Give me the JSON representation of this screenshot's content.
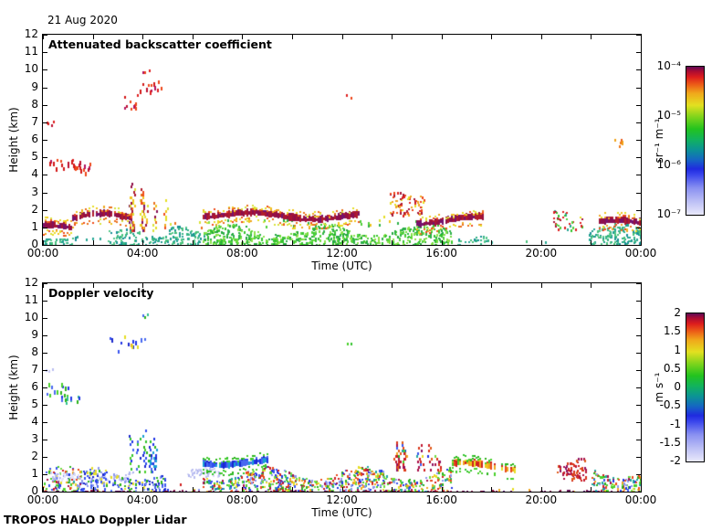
{
  "figure": {
    "date": "21 Aug 2020",
    "footer": "TROPOS HALO Doppler Lidar"
  },
  "axes": {
    "x": {
      "label": "Time (UTC)",
      "range_hours": [
        0,
        24
      ],
      "ticks": [
        {
          "h": 0,
          "label": "00:00"
        },
        {
          "h": 2
        },
        {
          "h": 4,
          "label": "04:00"
        },
        {
          "h": 6
        },
        {
          "h": 8,
          "label": "08:00"
        },
        {
          "h": 10
        },
        {
          "h": 12,
          "label": "12:00"
        },
        {
          "h": 14
        },
        {
          "h": 16,
          "label": "16:00"
        },
        {
          "h": 18
        },
        {
          "h": 20,
          "label": "20:00"
        },
        {
          "h": 22
        },
        {
          "h": 24,
          "label": "00:00"
        }
      ]
    },
    "y": {
      "label": "Height (km)",
      "range_km": [
        0,
        12
      ],
      "tick_step": 1,
      "tick_labels": [
        "0",
        "1",
        "2",
        "3",
        "4",
        "5",
        "6",
        "7",
        "8",
        "9",
        "10",
        "11",
        "12"
      ]
    }
  },
  "panels": [
    {
      "title": "Attenuated backscatter coefficient",
      "ylabel": "Height (km)",
      "xlabel": "Time (UTC)",
      "colorbar": {
        "labels": [
          "10⁻⁴",
          "10⁻⁵",
          "10⁻⁶",
          "10⁻⁷"
        ],
        "unit": "sr⁻¹ m⁻¹"
      }
    },
    {
      "title": "Doppler velocity",
      "ylabel": "Height (km)",
      "xlabel": "Time (UTC)",
      "colorbar": {
        "labels": [
          "2",
          "1.5",
          "1",
          "0.5",
          "0",
          "-0.5",
          "-1",
          "-1.5",
          "-2"
        ],
        "unit": "m s⁻¹"
      }
    }
  ],
  "colormap": {
    "description": "jet-like: pale lavender (low) -> blue -> teal -> green -> yellow -> orange -> red -> dark purple (high)",
    "stops": [
      [
        "#e9e9fb",
        0
      ],
      [
        "#bcbff5",
        9
      ],
      [
        "#8a91f1",
        18
      ],
      [
        "#3a46ec",
        27
      ],
      [
        "#1f2ae0",
        31
      ],
      [
        "#1565c4",
        37
      ],
      [
        "#0b9395",
        44
      ],
      [
        "#12b35c",
        51
      ],
      [
        "#23c31e",
        58
      ],
      [
        "#7ed41c",
        66
      ],
      [
        "#e3e020",
        74
      ],
      [
        "#f0a81b",
        82
      ],
      [
        "#ec5c17",
        88
      ],
      [
        "#dd1d1d",
        93
      ],
      [
        "#a90b33",
        97
      ],
      [
        "#5e0a56",
        100
      ]
    ]
  },
  "palettes": {
    "teal": [
      "#2aa795",
      "#1f9e8e",
      "#35b484",
      "#49c17b",
      "#57c98c",
      "#188f96"
    ],
    "green": [
      "#35c42f",
      "#52d13d",
      "#71dd3f",
      "#2db04a",
      "#8ce24a",
      "#23a93c"
    ],
    "green2": [
      "#2bb31b",
      "#4ad02b",
      "#35c42f"
    ],
    "core": [
      "#861057",
      "#971140",
      "#a81434",
      "#74126e",
      "#b01d2c",
      "#8e0e4a"
    ],
    "fringe": [
      "#e6de25",
      "#efa61f",
      "#e9701c",
      "#d9e23a",
      "#ef4b1b",
      "#f0c41e"
    ],
    "red": [
      "#df2121",
      "#d31717",
      "#ee4619",
      "#bd1031",
      "#b3135f"
    ],
    "orange": [
      "#ef7a18",
      "#f0a219",
      "#e95a17",
      "#e98c1a"
    ],
    "redmix": [
      "#ee4619",
      "#df2121",
      "#efa61f",
      "#a81434",
      "#e6de25"
    ],
    "mixgr": [
      "#35c42f",
      "#52d13d",
      "#df2121",
      "#e6de25",
      "#2aa795",
      "#a81434"
    ],
    "rain": [
      "#2135e6",
      "#3a55ef",
      "#2bb31b",
      "#4ad02b",
      "#e6de25",
      "#efa61f",
      "#e9481b",
      "#d02020",
      "#21a6a0",
      "#8b97ef",
      "#a5134c",
      "#71dd3f"
    ],
    "pale": [
      "#d9dbf6",
      "#c8caf3",
      "#babef1",
      "#e5e5f9",
      "#aeb4ee"
    ],
    "bluemix": [
      "#2135e6",
      "#3a55ef",
      "#1b28cc",
      "#4868f0",
      "#2bb31b",
      "#8b97ef",
      "#e6de25"
    ],
    "blue": [
      "#2135e6",
      "#3050ef",
      "#1b28cc",
      "#4868f0",
      "#19a0d4"
    ],
    "posred": [
      "#c11831",
      "#a9104a",
      "#d93419",
      "#8e1060",
      "#e05a18",
      "#d02020"
    ],
    "warm": [
      "#e6de25",
      "#efa61f",
      "#e9481b",
      "#4ad02b",
      "#d02020",
      "#f0c41e"
    ],
    "warmdots": [
      "#4ad02b",
      "#e6de25",
      "#efa61f"
    ],
    "greenblue": [
      "#2bb31b",
      "#4ad02b",
      "#2135e6",
      "#4868f0",
      "#30c090"
    ],
    "coolstreak": [
      "#2135e6",
      "#3a55ef",
      "#2bb31b",
      "#4ad02b",
      "#e6de25",
      "#efa61f",
      "#4868f0",
      "#1b28cc"
    ],
    "darkline": [
      "#5c0a50",
      "#740d42",
      "#860f36",
      "#4a0860"
    ]
  },
  "chart_data": [
    {
      "type": "heatmap",
      "title": "Attenuated backscatter coefficient",
      "xlabel": "Time (UTC)",
      "ylabel": "Height (km)",
      "xlim_hours": [
        0,
        24
      ],
      "ylim_km": [
        0,
        12
      ],
      "value_scale": "log",
      "value_range": [
        "1e-7",
        "1e-4"
      ],
      "value_units": "sr⁻¹ m⁻¹",
      "features_format": "[shape, t_start_h, t_end_h, height_min_km, height_max_km, palette, density]",
      "features": [
        [
          "band",
          0.0,
          1.4,
          0.0,
          0.8,
          "teal",
          0.45
        ],
        [
          "line",
          0.0,
          1.15,
          0.8,
          1.25,
          "core|fringe",
          0.9
        ],
        [
          "dots",
          1.3,
          2.7,
          0.0,
          0.45,
          "teal",
          0.1
        ],
        [
          "band",
          2.6,
          4.9,
          0.0,
          0.95,
          "teal",
          0.4
        ],
        [
          "band",
          4.9,
          6.5,
          0.05,
          1.1,
          "teal",
          0.45
        ],
        [
          "band",
          6.4,
          16.4,
          0.0,
          1.25,
          "green",
          0.5
        ],
        [
          "dots",
          6.6,
          16.2,
          1.1,
          1.5,
          "green",
          0.1
        ],
        [
          "line",
          1.1,
          3.5,
          1.1,
          2.0,
          "core|fringe",
          0.7
        ],
        [
          "plume",
          3.4,
          4.9,
          0.9,
          3.7,
          "fringe|core",
          0.6
        ],
        [
          "dots",
          4.9,
          6.4,
          0.9,
          1.6,
          "fringe",
          0.08
        ],
        [
          "line",
          6.4,
          12.7,
          1.4,
          1.95,
          "core|fringe",
          0.95
        ],
        [
          "dots",
          12.7,
          13.9,
          1.2,
          1.9,
          "fringe",
          0.1
        ],
        [
          "band",
          13.9,
          15.3,
          1.7,
          3.1,
          "redmix",
          0.3
        ],
        [
          "line",
          15.0,
          17.7,
          1.15,
          1.85,
          "core|fringe",
          0.85
        ],
        [
          "band",
          20.4,
          21.7,
          0.9,
          2.0,
          "mixgr",
          0.25
        ],
        [
          "band",
          21.9,
          24.0,
          0.0,
          1.3,
          "teal",
          0.45
        ],
        [
          "line",
          22.3,
          24.0,
          0.9,
          1.45,
          "core|fringe",
          0.85
        ],
        [
          "band",
          16.4,
          17.9,
          0.0,
          0.8,
          "teal",
          0.3
        ],
        [
          "dots",
          17.9,
          21.9,
          0.0,
          0.3,
          "teal",
          0.06
        ],
        [
          "dots",
          0.05,
          0.4,
          6.8,
          7.3,
          "red",
          0.45
        ],
        [
          "streak",
          0.1,
          1.7,
          4.1,
          6.3,
          "red",
          0.6
        ],
        [
          "streak",
          2.8,
          4.75,
          7.7,
          9.8,
          "red",
          0.55
        ],
        [
          "dots",
          4.0,
          4.35,
          9.9,
          10.3,
          "red",
          0.35
        ],
        [
          "dots",
          12.15,
          12.4,
          8.3,
          8.6,
          "red",
          0.5
        ],
        [
          "dots",
          22.85,
          23.25,
          5.5,
          6.1,
          "orange",
          0.45
        ]
      ]
    },
    {
      "type": "heatmap",
      "title": "Doppler velocity",
      "xlabel": "Time (UTC)",
      "ylabel": "Height (km)",
      "xlim_hours": [
        0,
        24
      ],
      "ylim_km": [
        0,
        12
      ],
      "value_scale": "linear",
      "value_range": [
        -2,
        2
      ],
      "value_units": "m s⁻¹",
      "features_format": "[shape, t_start_h, t_end_h, height_min_km, height_max_km, palette, density]",
      "features": [
        [
          "band",
          0.0,
          1.6,
          0.0,
          1.5,
          "rain",
          0.35
        ],
        [
          "band",
          0.3,
          3.6,
          0.7,
          1.25,
          "pale",
          0.4
        ],
        [
          "band",
          1.5,
          4.9,
          0.0,
          1.45,
          "bluemix",
          0.4
        ],
        [
          "plume",
          3.4,
          4.9,
          1.2,
          3.7,
          "blue|green2",
          0.5
        ],
        [
          "dots",
          4.9,
          6.5,
          0.0,
          0.6,
          "rain",
          0.1
        ],
        [
          "band",
          5.8,
          7.1,
          0.9,
          1.45,
          "pale",
          0.5
        ],
        [
          "line",
          6.4,
          9.0,
          1.3,
          1.85,
          "blue|green2",
          0.8
        ],
        [
          "band",
          6.4,
          16.4,
          0.0,
          1.5,
          "rain",
          0.5
        ],
        [
          "plume",
          13.8,
          16.2,
          1.3,
          3.1,
          "posred|rain",
          0.5
        ],
        [
          "line",
          16.4,
          18.9,
          1.0,
          1.65,
          "warm|green2",
          0.75
        ],
        [
          "dots",
          18.0,
          22.0,
          0.0,
          0.3,
          "warmdots",
          0.08
        ],
        [
          "band",
          20.6,
          21.8,
          0.7,
          2.0,
          "posred",
          0.4
        ],
        [
          "band",
          22.0,
          24.0,
          0.0,
          1.7,
          "rain",
          0.45
        ],
        [
          "dots",
          0.05,
          0.4,
          6.9,
          7.3,
          "pale",
          0.45
        ],
        [
          "streak",
          0.1,
          1.7,
          4.2,
          6.2,
          "greenblue",
          0.55
        ],
        [
          "streak",
          2.8,
          4.75,
          7.7,
          9.8,
          "coolstreak",
          0.55
        ],
        [
          "dots",
          4.0,
          4.35,
          9.9,
          10.3,
          "greenblue",
          0.35
        ],
        [
          "dots",
          12.15,
          12.4,
          8.3,
          8.6,
          "green2",
          0.5
        ],
        [
          "band",
          0.0,
          24.0,
          0.0,
          0.1,
          "darkline",
          0.9
        ]
      ]
    }
  ]
}
